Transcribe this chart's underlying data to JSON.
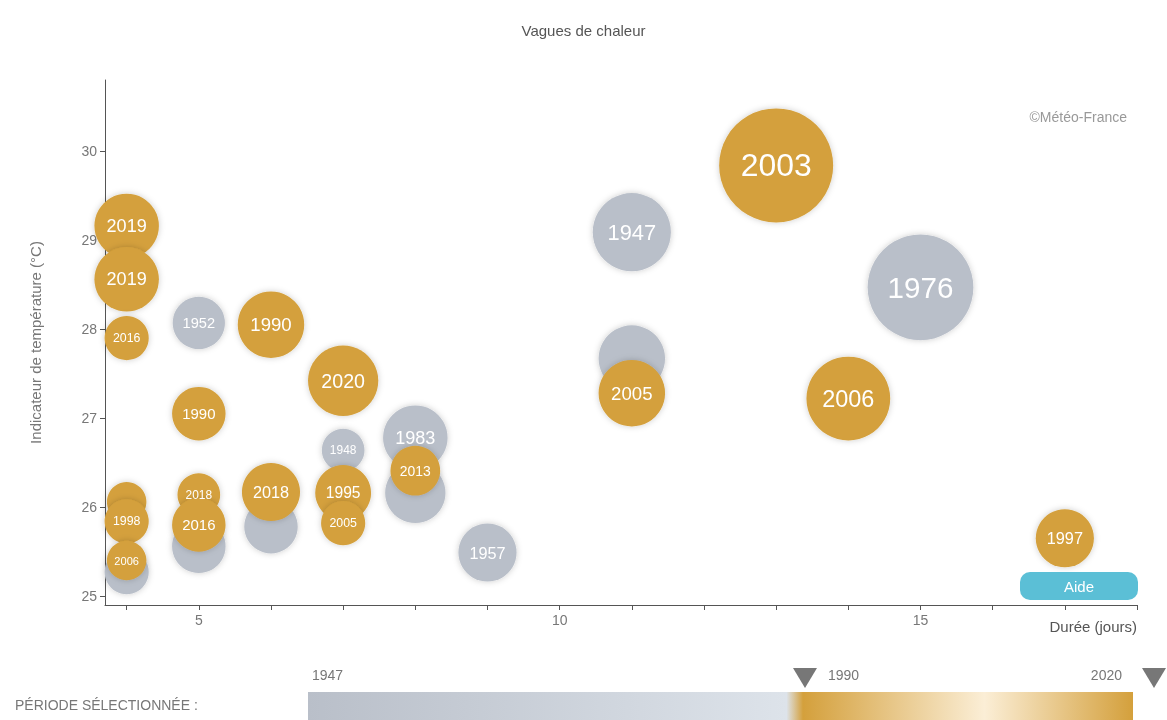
{
  "chart_data": {
    "type": "bubble",
    "title": "Vagues de chaleur",
    "xlabel": "Durée (jours)",
    "ylabel": "Indicateur de température (°C)",
    "xlim": [
      3.7,
      18
    ],
    "xticks": [
      {
        "value": 4,
        "label": null
      },
      5,
      {
        "value": 6,
        "label": null
      },
      {
        "value": 7,
        "label": null
      },
      {
        "value": 8,
        "label": null
      },
      {
        "value": 9,
        "label": null
      },
      10,
      {
        "value": 11,
        "label": null
      },
      {
        "value": 12,
        "label": null
      },
      {
        "value": 13,
        "label": null
      },
      {
        "value": 14,
        "label": null
      },
      15,
      {
        "value": 16,
        "label": null
      },
      {
        "value": 17,
        "label": null
      },
      {
        "value": 18,
        "label": null
      }
    ],
    "ylim": [
      24.9,
      30.8
    ],
    "yticks": [
      25,
      26,
      27,
      28,
      29,
      30
    ],
    "grid": false,
    "series": [
      {
        "color": "#b9bfc9",
        "x": [
          4,
          5,
          5,
          6,
          7,
          8,
          8,
          9,
          11,
          11,
          15
        ],
        "values": [
          25.27,
          25.56,
          28.07,
          25.78,
          26.64,
          26.78,
          26.16,
          25.49,
          29.09,
          27.67,
          28.47
        ],
        "sizes": [
          0.15,
          0.22,
          0.21,
          0.22,
          0.14,
          0.32,
          0.28,
          0.26,
          0.47,
          0.34,
          0.86
        ]
      },
      {
        "color": "#d4a03c",
        "x": [
          4,
          4,
          4,
          4,
          4,
          4,
          5,
          5,
          5,
          6,
          6,
          7,
          7,
          7,
          8,
          11,
          13,
          14,
          17
        ],
        "values": [
          29.16,
          28.56,
          27.9,
          26.06,
          25.84,
          25.4,
          27.05,
          26.14,
          25.8,
          28.05,
          26.17,
          27.42,
          26.16,
          25.82,
          26.41,
          27.28,
          29.84,
          27.22,
          25.65
        ],
        "sizes": [
          0.32,
          0.32,
          0.15,
          0.12,
          0.15,
          0.12,
          0.22,
          0.14,
          0.22,
          0.34,
          0.26,
          0.38,
          0.24,
          0.15,
          0.19,
          0.34,
          1,
          0.54,
          0.26
        ]
      }
    ],
    "annotations": [
      "©Météo-France",
      "PÉRIODE SÉLECTIONNÉE :",
      "1947",
      "1990",
      "2020",
      "Aide",
      {
        "text": "1952",
        "x": 5,
        "y": 28.07
      },
      {
        "text": "1948",
        "x": 7,
        "y": 26.64
      },
      {
        "text": "1983",
        "x": 8,
        "y": 26.78
      },
      {
        "text": "1957",
        "x": 9,
        "y": 25.49
      },
      {
        "text": "1947",
        "x": 11,
        "y": 29.09
      },
      {
        "text": "1976",
        "x": 15,
        "y": 28.47
      },
      {
        "text": "2019",
        "x": 4,
        "y": 29.16
      },
      {
        "text": "2019",
        "x": 4,
        "y": 28.56
      },
      {
        "text": "2016",
        "x": 4,
        "y": 27.9
      },
      {
        "text": "1998",
        "x": 4,
        "y": 25.84
      },
      {
        "text": "2006",
        "x": 4,
        "y": 25.4
      },
      {
        "text": "1990",
        "x": 5,
        "y": 27.05
      },
      {
        "text": "2018",
        "x": 5,
        "y": 26.14
      },
      {
        "text": "2016",
        "x": 5,
        "y": 25.8
      },
      {
        "text": "1990",
        "x": 6,
        "y": 28.05
      },
      {
        "text": "2018",
        "x": 6,
        "y": 26.17
      },
      {
        "text": "2020",
        "x": 7,
        "y": 27.42
      },
      {
        "text": "1995",
        "x": 7,
        "y": 26.16
      },
      {
        "text": "2005",
        "x": 7,
        "y": 25.82
      },
      {
        "text": "2013",
        "x": 8,
        "y": 26.41
      },
      {
        "text": "2005",
        "x": 11,
        "y": 27.28
      },
      {
        "text": "2003",
        "x": 13,
        "y": 29.84
      },
      {
        "text": "2006",
        "x": 14,
        "y": 27.22
      },
      {
        "text": "1997",
        "x": 17,
        "y": 25.65
      }
    ]
  }
}
